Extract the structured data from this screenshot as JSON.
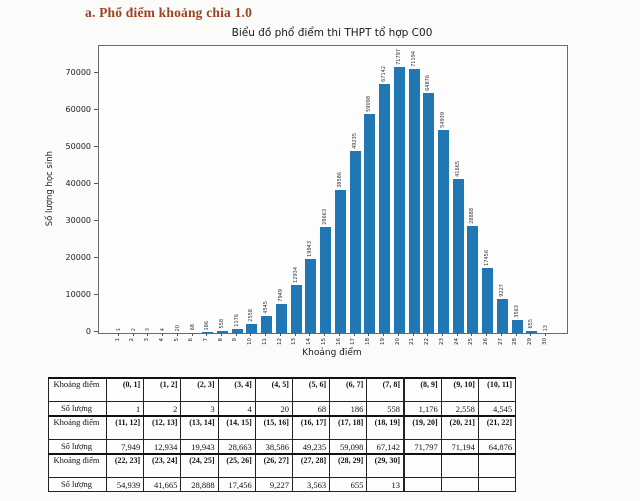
{
  "page": {
    "heading": "a. Phổ điểm khoảng chia 1.0",
    "heading_color": "#9b4423"
  },
  "chart_data": {
    "type": "bar",
    "title": "Biểu đồ phổ điểm thi THPT tổ hợp C00",
    "xlabel": "Khoảng điểm",
    "ylabel": "Số lượng học sinh",
    "categories": [
      "1",
      "2",
      "3",
      "4",
      "5",
      "6",
      "7",
      "8",
      "9",
      "10",
      "11",
      "12",
      "13",
      "14",
      "15",
      "16",
      "17",
      "18",
      "19",
      "20",
      "21",
      "22",
      "23",
      "24",
      "25",
      "26",
      "27",
      "28",
      "29",
      "30"
    ],
    "values": [
      1,
      2,
      3,
      4,
      20,
      68,
      186,
      558,
      1176,
      2558,
      4545,
      7949,
      12934,
      19943,
      28663,
      38586,
      49235,
      59098,
      67142,
      71797,
      71194,
      64876,
      54939,
      41665,
      28888,
      17456,
      9227,
      3563,
      655,
      13
    ],
    "bar_color": "#2077b4",
    "yticks": [
      0,
      10000,
      20000,
      30000,
      40000,
      50000,
      60000,
      70000
    ],
    "ylim": [
      0,
      77500
    ],
    "grid": false,
    "legend": null,
    "bar_value_labels_rotation": 90
  },
  "table": {
    "rows": [
      {
        "type": "range",
        "header": "Khoảng điểm",
        "cells": [
          "(0, 1]",
          "(1, 2]",
          "(2, 3]",
          "(3, 4]",
          "(4, 5]",
          "(5, 6]",
          "(6, 7]",
          "(7, 8]",
          "(8, 9]",
          "(9, 10]",
          "(10, 11]"
        ]
      },
      {
        "type": "count",
        "header": "Số lượng",
        "cells": [
          "1",
          "2",
          "3",
          "4",
          "20",
          "68",
          "186",
          "558",
          "1,176",
          "2,558",
          "4,545"
        ]
      },
      {
        "type": "range",
        "header": "Khoảng điểm",
        "cells": [
          "(11, 12]",
          "(12, 13]",
          "(13, 14]",
          "(14, 15]",
          "(15, 16]",
          "(16, 17]",
          "(17, 18]",
          "(18, 19]",
          "(19, 20]",
          "(20, 21]",
          "(21, 22]"
        ]
      },
      {
        "type": "count",
        "header": "Số lượng",
        "cells": [
          "7,949",
          "12,934",
          "19,943",
          "28,663",
          "38,586",
          "49,235",
          "59,098",
          "67,142",
          "71,797",
          "71,194",
          "64,876"
        ]
      },
      {
        "type": "range",
        "header": "Khoảng điểm",
        "cells": [
          "(22, 23]",
          "(23, 24]",
          "(24, 25]",
          "(25, 26]",
          "(26, 27]",
          "(27, 28]",
          "(28, 29]",
          "(29, 30]",
          "",
          "",
          ""
        ]
      },
      {
        "type": "count",
        "header": "Số lượng",
        "cells": [
          "54,939",
          "41,665",
          "28,888",
          "17,456",
          "9,227",
          "3,563",
          "655",
          "13",
          "",
          "",
          ""
        ]
      }
    ]
  }
}
